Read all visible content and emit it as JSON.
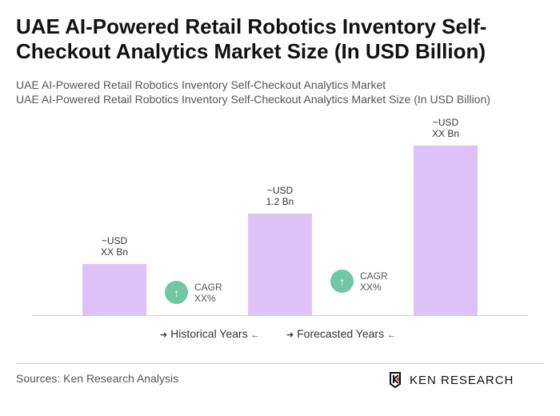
{
  "title": "UAE AI-Powered Retail Robotics Inventory Self-Checkout Analytics Market Size (In USD Billion)",
  "subtitle_1": "UAE AI-Powered Retail Robotics Inventory Self-Checkout Analytics Market",
  "subtitle_2": "UAE AI-Powered Retail Robotics Inventory Self-Checkout Analytics Market Size (In USD Billion)",
  "chart_data": {
    "type": "bar",
    "categories": [
      "",
      "",
      ""
    ],
    "values": [
      0.6,
      1.2,
      2.0
    ],
    "data_labels": [
      {
        "line1": "~USD",
        "line2": "XX Bn"
      },
      {
        "line1": "~USD",
        "line2": "1.2 Bn"
      },
      {
        "line1": "~USD",
        "line2": "XX Bn"
      }
    ],
    "bar_color": "#dcc2f7",
    "ylim": [
      0,
      2.0
    ],
    "grid": false,
    "cagr": [
      {
        "label": "CAGR",
        "value": "XX%",
        "icon": "arrow-up-icon",
        "color": "#6fc7a4"
      },
      {
        "label": "CAGR",
        "value": "XX%",
        "icon": "arrow-up-icon",
        "color": "#6fc7a4"
      }
    ],
    "legend": [
      "Historical Years",
      "Forecasted Years"
    ],
    "legend_placement": "bottom"
  },
  "footer": {
    "source": "Sources: Ken Research Analysis",
    "logo_text": "KEN RESEARCH"
  }
}
